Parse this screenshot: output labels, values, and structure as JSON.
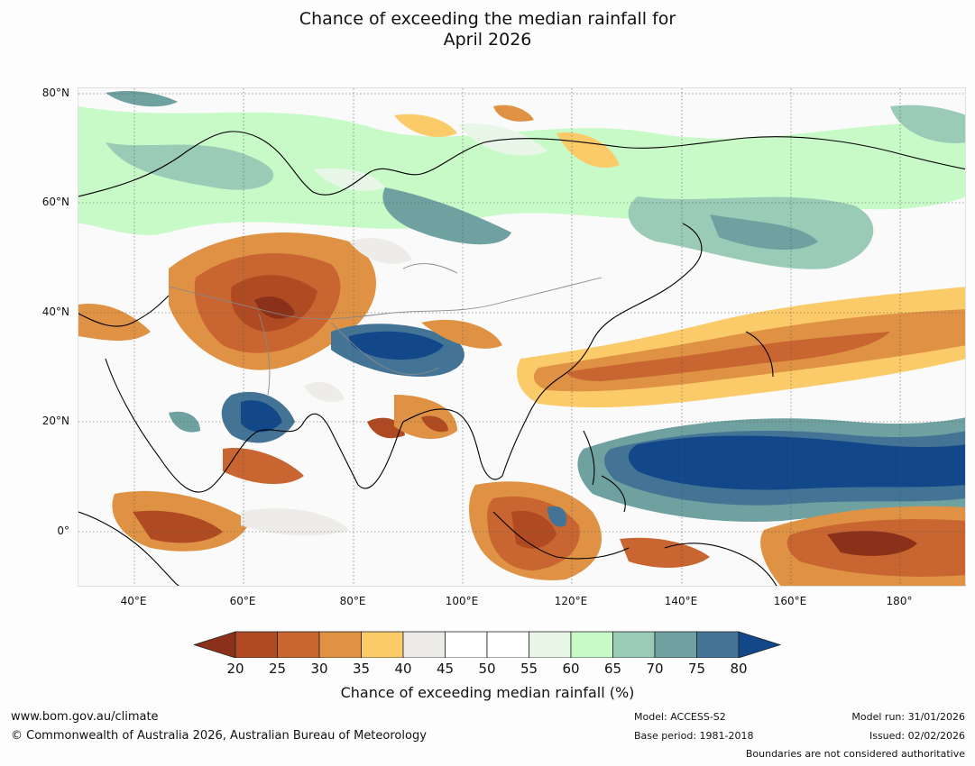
{
  "title": {
    "line1": "Chance of exceeding the median rainfall for",
    "line2": "April 2026"
  },
  "map": {
    "lat_labels": [
      "80°N",
      "60°N",
      "40°N",
      "20°N",
      "0°"
    ],
    "lon_labels": [
      "40°E",
      "60°E",
      "80°E",
      "100°E",
      "120°E",
      "140°E",
      "160°E",
      "180°"
    ]
  },
  "colorbar": {
    "ticks": [
      "20",
      "25",
      "30",
      "35",
      "40",
      "45",
      "50",
      "55",
      "60",
      "65",
      "70",
      "75",
      "80"
    ],
    "colors": [
      "#8c3119",
      "#b04a22",
      "#c86530",
      "#df9244",
      "#fbcb6a",
      "#eeece8",
      "#ffffff",
      "#ffffff",
      "#e8f6e8",
      "#c8fac8",
      "#99cbb6",
      "#6ea1a0",
      "#437496",
      "#12488a"
    ],
    "label": "Chance of exceeding median rainfall (%)"
  },
  "footer": {
    "website": "www.bom.gov.au/climate",
    "copyright": "© Commonwealth of Australia 2026, Australian Bureau of Meteorology",
    "model": "Model: ACCESS-S2",
    "base_period": "Base period: 1981-2018",
    "model_run": "Model run: 31/01/2026",
    "issued": "Issued: 02/02/2026",
    "disclaimer": "Boundaries are not considered authoritative"
  }
}
